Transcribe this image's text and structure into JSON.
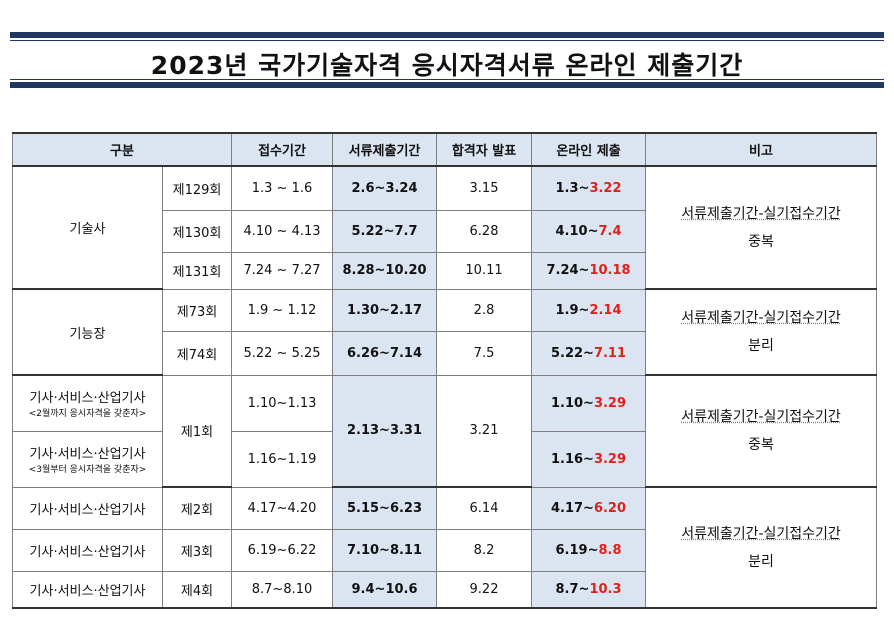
{
  "title": "2023년 국가기술자격 응시자격서류 온라인 제출기간",
  "headers": {
    "category": "구분",
    "receipt": "접수기간",
    "document": "서류제출기간",
    "announce": "합격자 발표",
    "online": "온라인 제출",
    "remarks": "비고"
  },
  "groups": {
    "g1": {
      "name": "기술사",
      "remark_line1": "서류제출기간-실기접수기간",
      "remark_line2": "중복",
      "rows": [
        {
          "round": "제129회",
          "receipt": "1.3  ~  1.6",
          "document": "2.6~3.24",
          "announce": "3.15",
          "online_start": "1.3~",
          "online_end": "3.22"
        },
        {
          "round": "제130회",
          "receipt": "4.10  ~  4.13",
          "document": "5.22~7.7",
          "announce": "6.28",
          "online_start": "4.10~",
          "online_end": "7.4"
        },
        {
          "round": "제131회",
          "receipt": "7.24  ~  7.27",
          "document": "8.28~10.20",
          "announce": "10.11",
          "online_start": "7.24~",
          "online_end": "10.18"
        }
      ]
    },
    "g2": {
      "name": "기능장",
      "remark_line1": "서류제출기간-실기접수기간",
      "remark_line2": "분리",
      "rows": [
        {
          "round": "제73회",
          "receipt": "1.9  ~  1.12",
          "document": "1.30~2.17",
          "announce": "2.8",
          "online_start": "1.9~",
          "online_end": "2.14"
        },
        {
          "round": "제74회",
          "receipt": "5.22  ~  5.25",
          "document": "6.26~7.14",
          "announce": "7.5",
          "online_start": "5.22~",
          "online_end": "7.11"
        }
      ]
    },
    "g3": {
      "round": "제1회",
      "document": "2.13~3.31",
      "announce": "3.21",
      "remark_line1": "서류제출기간-실기접수기간",
      "remark_line2": "중복",
      "rows": [
        {
          "name": "기사·서비스·산업기사",
          "sub": "<2월까지 응시자격을 갖춘자>",
          "receipt": "1.10~1.13",
          "online_start": "1.10~",
          "online_end": "3.29"
        },
        {
          "name": "기사·서비스·산업기사",
          "sub": "<3월부터 응시자격을 갖춘자>",
          "receipt": "1.16~1.19",
          "online_start": "1.16~",
          "online_end": "3.29"
        }
      ]
    },
    "g4": {
      "remark_line1": "서류제출기간-실기접수기간",
      "remark_line2": "분리",
      "rows": [
        {
          "name": "기사·서비스·산업기사",
          "round": "제2회",
          "receipt": "4.17~4.20",
          "document": "5.15~6.23",
          "announce": "6.14",
          "online_start": "4.17~",
          "online_end": "6.20"
        },
        {
          "name": "기사·서비스·산업기사",
          "round": "제3회",
          "receipt": "6.19~6.22",
          "document": "7.10~8.11",
          "announce": "8.2",
          "online_start": "6.19~",
          "online_end": "8.8"
        },
        {
          "name": "기사·서비스·산업기사",
          "round": "제4회",
          "receipt": "8.7~8.10",
          "document": "9.4~10.6",
          "announce": "9.22",
          "online_start": "8.7~",
          "online_end": "10.3"
        }
      ]
    }
  },
  "colors": {
    "header_bg": "#dbe5f1",
    "highlight_red": "#e0201b",
    "title_rule": "#1f3864"
  }
}
